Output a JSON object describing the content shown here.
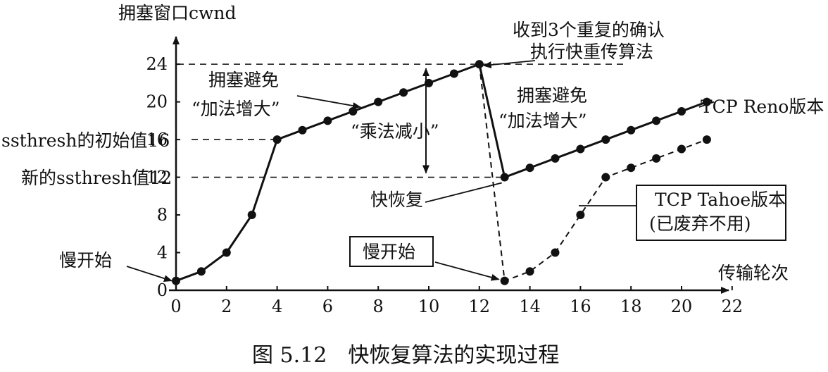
{
  "figure_caption": "图 5.12　快恢复算法的实现过程",
  "chart_data": {
    "type": "line",
    "ylabel": "拥塞窗口cwnd",
    "xlabel": "传输轮次",
    "xlim": [
      0,
      22
    ],
    "ylim": [
      0,
      24
    ],
    "x_ticks": [
      "0",
      "2",
      "4",
      "6",
      "8",
      "10",
      "12",
      "14",
      "16",
      "18",
      "20",
      "22"
    ],
    "y_ticks": [
      "0",
      "4",
      "8",
      "12",
      "16",
      "20",
      "24"
    ],
    "series": [
      {
        "name": "TCP Reno版本",
        "style": "solid",
        "points": [
          [
            0,
            1
          ],
          [
            1,
            2
          ],
          [
            2,
            4
          ],
          [
            3,
            8
          ],
          [
            4,
            16
          ],
          [
            5,
            17
          ],
          [
            6,
            18
          ],
          [
            7,
            19
          ],
          [
            8,
            20
          ],
          [
            9,
            21
          ],
          [
            10,
            22
          ],
          [
            11,
            23
          ],
          [
            12,
            24
          ],
          [
            13,
            12
          ],
          [
            14,
            13
          ],
          [
            15,
            14
          ],
          [
            16,
            15
          ],
          [
            17,
            16
          ],
          [
            18,
            17
          ],
          [
            19,
            18
          ],
          [
            20,
            19
          ],
          [
            21,
            20
          ]
        ]
      },
      {
        "name": "TCP Tahoe版本",
        "name_line2": "(已废弃不用)",
        "style": "dashed",
        "points": [
          [
            12,
            24
          ],
          [
            13,
            1
          ],
          [
            14,
            2
          ],
          [
            15,
            4
          ],
          [
            16,
            8
          ],
          [
            17,
            12
          ],
          [
            18,
            13
          ],
          [
            19,
            14
          ],
          [
            20,
            15
          ],
          [
            21,
            16
          ]
        ]
      }
    ],
    "annotations": {
      "ssthresh_initial": "ssthresh的初始值16",
      "ssthresh_new": "新的ssthresh值12",
      "slow_start_1": "慢开始",
      "slow_start_2": "慢开始",
      "ca1_line1": "拥塞避免",
      "ca1_line2": "“加法增大”",
      "ca2_line1": "拥塞避免",
      "ca2_line2": "“加法增大”",
      "md": "“乘法减小”",
      "dupack_line1": "收到3个重复的确认",
      "dupack_line2": "执行快重传算法",
      "fast_recovery": "快恢复"
    },
    "colors": {
      "ink": "#111111",
      "background": "#ffffff"
    }
  }
}
